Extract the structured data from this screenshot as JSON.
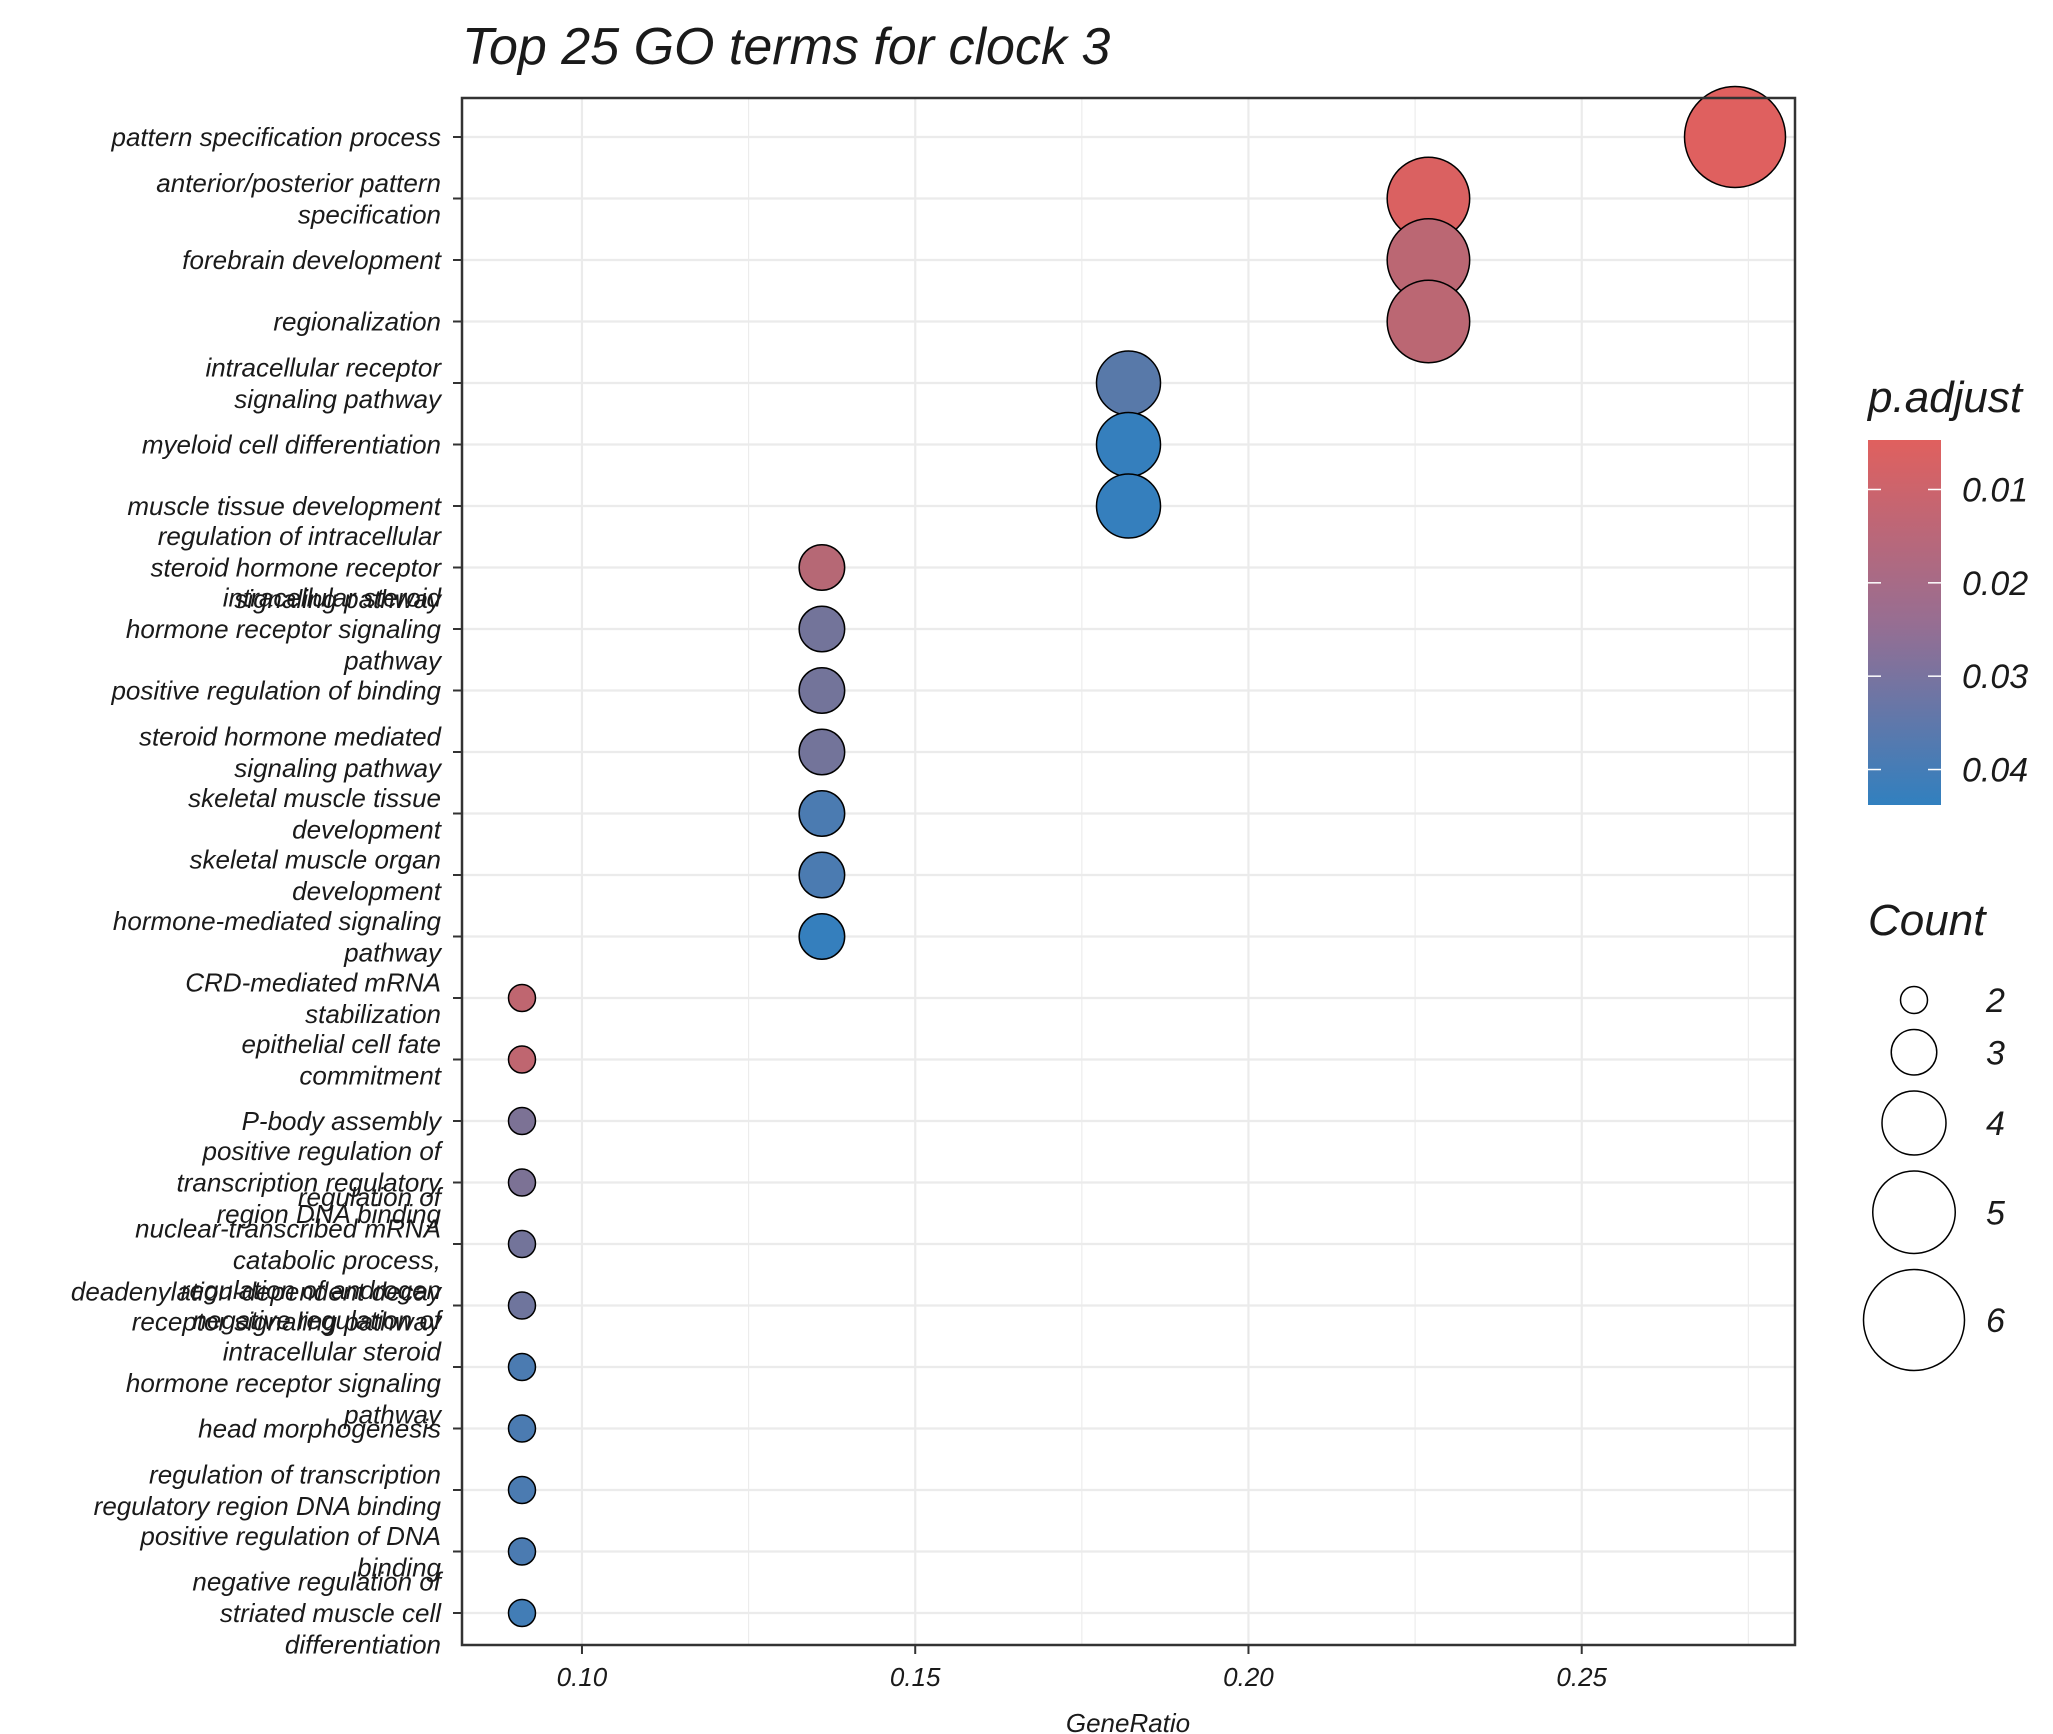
{
  "chart_data": {
    "type": "scatter",
    "title": "Top 25 GO terms for clock 3",
    "xlabel": "GeneRatio",
    "ylabel": "",
    "xlim": [
      0.082,
      0.282
    ],
    "xticks": [
      0.1,
      0.15,
      0.2,
      0.25
    ],
    "xtick_labels": [
      "0.10",
      "0.15",
      "0.20",
      "0.25"
    ],
    "grid": true,
    "legend_position": "right",
    "color_legend": {
      "title": "p.adjust",
      "ticks": [
        0.01,
        0.02,
        0.03,
        0.04
      ],
      "tick_labels": [
        "0.01",
        "0.02",
        "0.03",
        "0.04"
      ],
      "range": [
        0.0047,
        0.0438
      ],
      "low_color": "#E0605E",
      "high_color": "#3180BF"
    },
    "size_legend": {
      "title": "Count",
      "values": [
        2,
        3,
        4,
        5,
        6
      ],
      "labels": [
        "2",
        "3",
        "4",
        "5",
        "6"
      ]
    },
    "points": [
      {
        "term": [
          "pattern specification process"
        ],
        "gene_ratio": 0.273,
        "count": 6,
        "p_adjust": 0.005
      },
      {
        "term": [
          "anterior/posterior pattern",
          "specification"
        ],
        "gene_ratio": 0.227,
        "count": 5,
        "p_adjust": 0.006
      },
      {
        "term": [
          "forebrain development"
        ],
        "gene_ratio": 0.227,
        "count": 5,
        "p_adjust": 0.013
      },
      {
        "term": [
          "regionalization"
        ],
        "gene_ratio": 0.227,
        "count": 5,
        "p_adjust": 0.013
      },
      {
        "term": [
          "intracellular receptor",
          "signaling pathway"
        ],
        "gene_ratio": 0.182,
        "count": 4,
        "p_adjust": 0.035
      },
      {
        "term": [
          "myeloid cell differentiation"
        ],
        "gene_ratio": 0.182,
        "count": 4,
        "p_adjust": 0.043
      },
      {
        "term": [
          "muscle tissue development"
        ],
        "gene_ratio": 0.182,
        "count": 4,
        "p_adjust": 0.043
      },
      {
        "term": [
          "regulation of intracellular",
          "steroid hormone receptor",
          "signaling pathway"
        ],
        "gene_ratio": 0.136,
        "count": 3,
        "p_adjust": 0.014
      },
      {
        "term": [
          "intracellular steroid",
          "hormone receptor signaling",
          "pathway"
        ],
        "gene_ratio": 0.136,
        "count": 3,
        "p_adjust": 0.029
      },
      {
        "term": [
          "positive regulation of binding"
        ],
        "gene_ratio": 0.136,
        "count": 3,
        "p_adjust": 0.029
      },
      {
        "term": [
          "steroid hormone mediated",
          "signaling pathway"
        ],
        "gene_ratio": 0.136,
        "count": 3,
        "p_adjust": 0.029
      },
      {
        "term": [
          "skeletal muscle tissue",
          "development"
        ],
        "gene_ratio": 0.136,
        "count": 3,
        "p_adjust": 0.038
      },
      {
        "term": [
          "skeletal muscle organ",
          "development"
        ],
        "gene_ratio": 0.136,
        "count": 3,
        "p_adjust": 0.038
      },
      {
        "term": [
          "hormone-mediated signaling",
          "pathway"
        ],
        "gene_ratio": 0.136,
        "count": 3,
        "p_adjust": 0.043
      },
      {
        "term": [
          "CRD-mediated mRNA",
          "stabilization"
        ],
        "gene_ratio": 0.091,
        "count": 2,
        "p_adjust": 0.012
      },
      {
        "term": [
          "epithelial cell fate",
          "commitment"
        ],
        "gene_ratio": 0.091,
        "count": 2,
        "p_adjust": 0.012
      },
      {
        "term": [
          "P-body assembly"
        ],
        "gene_ratio": 0.091,
        "count": 2,
        "p_adjust": 0.027
      },
      {
        "term": [
          "positive regulation of",
          "transcription regulatory",
          "region DNA binding"
        ],
        "gene_ratio": 0.091,
        "count": 2,
        "p_adjust": 0.027
      },
      {
        "term": [
          "regulation of",
          "nuclear-transcribed mRNA",
          "catabolic process,",
          "deadenylation-dependent decay"
        ],
        "gene_ratio": 0.091,
        "count": 2,
        "p_adjust": 0.029
      },
      {
        "term": [
          "regulation of androgen",
          "receptor signaling pathway"
        ],
        "gene_ratio": 0.091,
        "count": 2,
        "p_adjust": 0.03
      },
      {
        "term": [
          "negative regulation of",
          "intracellular steroid",
          "hormone receptor signaling",
          "pathway"
        ],
        "gene_ratio": 0.091,
        "count": 2,
        "p_adjust": 0.038
      },
      {
        "term": [
          "head morphogenesis"
        ],
        "gene_ratio": 0.091,
        "count": 2,
        "p_adjust": 0.038
      },
      {
        "term": [
          "regulation of transcription",
          "regulatory region DNA binding"
        ],
        "gene_ratio": 0.091,
        "count": 2,
        "p_adjust": 0.038
      },
      {
        "term": [
          "positive regulation of DNA",
          "binding"
        ],
        "gene_ratio": 0.091,
        "count": 2,
        "p_adjust": 0.038
      },
      {
        "term": [
          "negative regulation of",
          "striated muscle cell",
          "differentiation"
        ],
        "gene_ratio": 0.091,
        "count": 2,
        "p_adjust": 0.04
      }
    ]
  }
}
